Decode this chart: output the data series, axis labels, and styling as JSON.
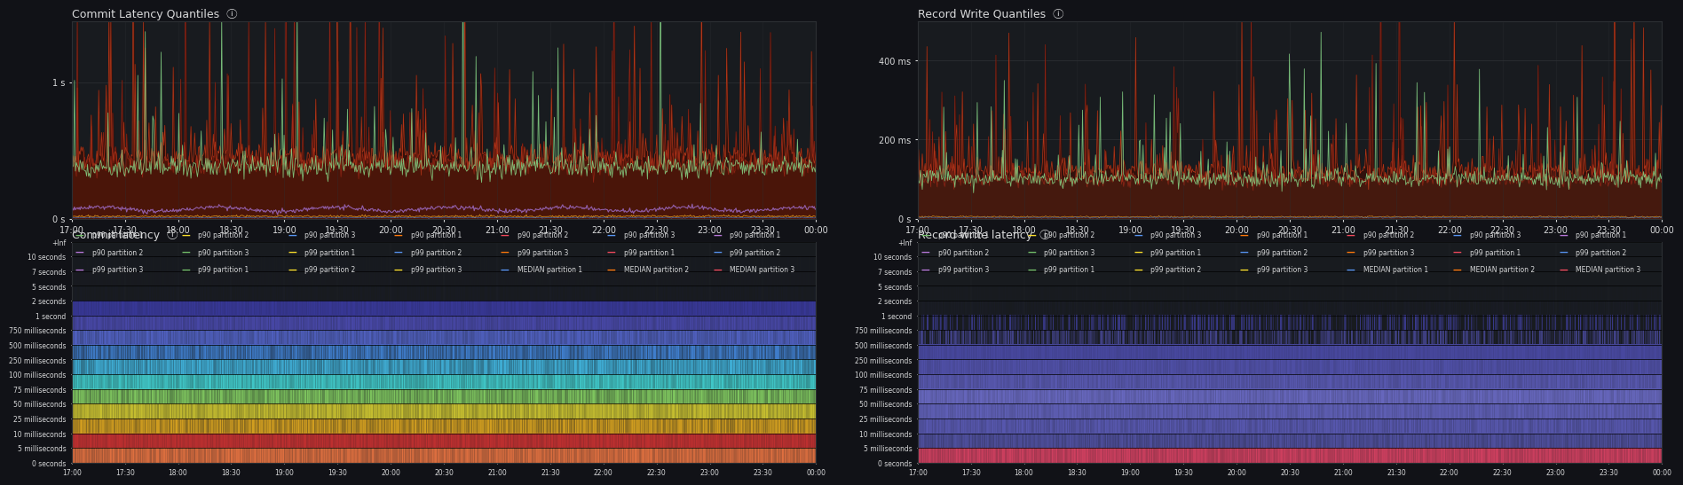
{
  "bg_color": "#111217",
  "panel_bg": "#181b1f",
  "text_color": "#d8d9da",
  "grid_color": "#2c2f33",
  "title_fontsize": 9,
  "tick_fontsize": 7,
  "time_labels": [
    "17:00",
    "17:30",
    "18:00",
    "18:30",
    "19:00",
    "19:30",
    "20:00",
    "20:30",
    "21:00",
    "21:30",
    "22:00",
    "22:30",
    "23:00",
    "23:30",
    "00:00"
  ],
  "panels": [
    {
      "title": "Commit Latency Quantiles",
      "ytick_labels": [
        "0 s",
        "1 s"
      ],
      "ytick_vals": [
        0,
        1.0
      ],
      "ylim": [
        0,
        1.45
      ]
    },
    {
      "title": "Record Write Quantiles",
      "ytick_labels": [
        "0 s",
        "200 ms",
        "400 ms"
      ],
      "ytick_vals": [
        0,
        0.2,
        0.4
      ],
      "ylim": [
        0,
        0.5
      ]
    }
  ],
  "heatmap_panels": [
    {
      "title": "Commit latency",
      "yticks": [
        "+Inf",
        "10 seconds",
        "7 seconds",
        "5 seconds",
        "2 seconds",
        "1 second",
        "750 milliseconds",
        "500 milliseconds",
        "250 milliseconds",
        "100 milliseconds",
        "75 milliseconds",
        "50 milliseconds",
        "25 milliseconds",
        "10 milliseconds",
        "5 milliseconds",
        "0 seconds"
      ]
    },
    {
      "title": "Record write latency",
      "yticks": [
        "+Inf",
        "10 seconds",
        "7 seconds",
        "5 seconds",
        "2 seconds",
        "1 second",
        "750 milliseconds",
        "500 milliseconds",
        "250 milliseconds",
        "100 milliseconds",
        "75 milliseconds",
        "50 milliseconds",
        "25 milliseconds",
        "10 milliseconds",
        "5 milliseconds",
        "0 seconds"
      ]
    }
  ],
  "legend_rows": [
    [
      {
        "label": "p90 partition 1",
        "color": "#73bf69"
      },
      {
        "label": "p90 partition 2",
        "color": "#fade2a"
      },
      {
        "label": "p90 partition 3",
        "color": "#5794f2"
      },
      {
        "label": "p90 partition 1",
        "color": "#ff780a"
      },
      {
        "label": "p90 partition 2",
        "color": "#f2495c"
      },
      {
        "label": "p90 partition 3",
        "color": "#5794f2"
      },
      {
        "label": "p90 partition 1",
        "color": "#b877d9"
      }
    ],
    [
      {
        "label": "p90 partition 2",
        "color": "#b877d9"
      },
      {
        "label": "p90 partition 3",
        "color": "#73bf69"
      },
      {
        "label": "p99 partition 1",
        "color": "#fade2a"
      },
      {
        "label": "p99 partition 2",
        "color": "#5794f2"
      },
      {
        "label": "p99 partition 3",
        "color": "#ff780a"
      },
      {
        "label": "p99 partition 1",
        "color": "#f2495c"
      },
      {
        "label": "p99 partition 2",
        "color": "#5794f2"
      }
    ],
    [
      {
        "label": "p99 partition 3",
        "color": "#b877d9"
      },
      {
        "label": "p99 partition 1",
        "color": "#73bf69"
      },
      {
        "label": "p99 partition 2",
        "color": "#fade2a"
      },
      {
        "label": "p99 partition 3",
        "color": "#fade2a"
      },
      {
        "label": "MEDIAN partition 1",
        "color": "#5794f2"
      },
      {
        "label": "MEDIAN partition 2",
        "color": "#ff780a"
      },
      {
        "label": "MEDIAN partition 3",
        "color": "#f2495c"
      }
    ]
  ],
  "commit_heatmap_rows": [
    {
      "label": "5 milliseconds",
      "color": "#e07040",
      "fill": 0.85,
      "vary": 0.15
    },
    {
      "label": "10 milliseconds",
      "color": "#c03030",
      "fill": 0.9,
      "vary": 0.1
    },
    {
      "label": "25 milliseconds",
      "color": "#d4a020",
      "fill": 0.8,
      "vary": 0.2
    },
    {
      "label": "50 milliseconds",
      "color": "#c8c030",
      "fill": 0.85,
      "vary": 0.15
    },
    {
      "label": "75 milliseconds",
      "color": "#80c860",
      "fill": 0.8,
      "vary": 0.2
    },
    {
      "label": "100 milliseconds",
      "color": "#40c8c8",
      "fill": 0.85,
      "vary": 0.15
    },
    {
      "label": "250 milliseconds",
      "color": "#40b0d8",
      "fill": 0.8,
      "vary": 0.2
    },
    {
      "label": "500 milliseconds",
      "color": "#4080d0",
      "fill": 0.75,
      "vary": 0.25
    },
    {
      "label": "750 milliseconds",
      "color": "#5060c0",
      "fill": 0.85,
      "vary": 0.15
    },
    {
      "label": "1 second",
      "color": "#4848a8",
      "fill": 0.88,
      "vary": 0.12
    },
    {
      "label": "2 seconds",
      "color": "#383898",
      "fill": 0.92,
      "vary": 0.08
    },
    {
      "label": "5 seconds",
      "color": "#202070",
      "fill": 0.02,
      "vary": 0.04
    },
    {
      "label": "7 seconds",
      "color": "#181860",
      "fill": 0.01,
      "vary": 0.02
    },
    {
      "label": "10 seconds",
      "color": "#101050",
      "fill": 0.01,
      "vary": 0.02
    },
    {
      "label": "+Inf",
      "color": "#080840",
      "fill": 0.0,
      "vary": 0.01
    }
  ],
  "write_heatmap_rows": [
    {
      "label": "5 milliseconds",
      "color": "#d04060",
      "fill": 0.88,
      "vary": 0.12
    },
    {
      "label": "10 milliseconds",
      "color": "#5050a0",
      "fill": 0.85,
      "vary": 0.15
    },
    {
      "label": "25 milliseconds",
      "color": "#5858b0",
      "fill": 0.88,
      "vary": 0.12
    },
    {
      "label": "50 milliseconds",
      "color": "#6060b8",
      "fill": 0.9,
      "vary": 0.1
    },
    {
      "label": "75 milliseconds",
      "color": "#6868c0",
      "fill": 0.9,
      "vary": 0.1
    },
    {
      "label": "100 milliseconds",
      "color": "#5858b0",
      "fill": 0.9,
      "vary": 0.1
    },
    {
      "label": "250 milliseconds",
      "color": "#5050a8",
      "fill": 0.92,
      "vary": 0.08
    },
    {
      "label": "500 milliseconds",
      "color": "#4848a0",
      "fill": 0.94,
      "vary": 0.06
    },
    {
      "label": "750 milliseconds",
      "color": "#484898",
      "fill": 0.4,
      "vary": 0.5
    },
    {
      "label": "1 second",
      "color": "#4040a0",
      "fill": 0.15,
      "vary": 0.7
    },
    {
      "label": "2 seconds",
      "color": "#303090",
      "fill": 0.02,
      "vary": 0.04
    },
    {
      "label": "5 seconds",
      "color": "#202070",
      "fill": 0.01,
      "vary": 0.02
    },
    {
      "label": "7 seconds",
      "color": "#181860",
      "fill": 0.0,
      "vary": 0.01
    },
    {
      "label": "10 seconds",
      "color": "#101050",
      "fill": 0.0,
      "vary": 0.01
    },
    {
      "label": "+Inf",
      "color": "#080840",
      "fill": 0.0,
      "vary": 0.01
    }
  ]
}
